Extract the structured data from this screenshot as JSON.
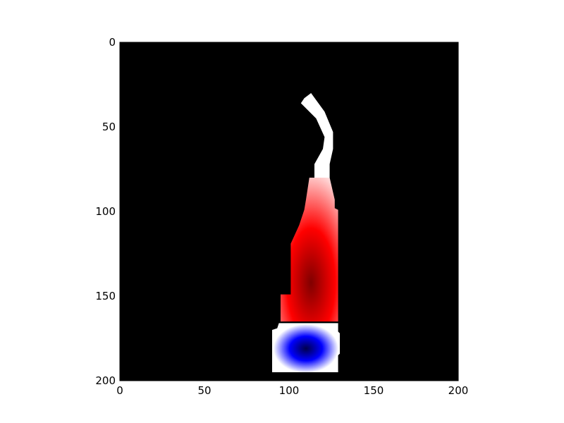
{
  "chart_data": {
    "type": "heatmap",
    "title": "",
    "xlabel": "",
    "ylabel": "",
    "xlim": [
      0,
      200
    ],
    "ylim": [
      200,
      0
    ],
    "x_ticks": [
      "0",
      "50",
      "100",
      "150",
      "200"
    ],
    "y_ticks": [
      "0",
      "50",
      "100",
      "150",
      "200"
    ],
    "x_tick_values": [
      0,
      50,
      100,
      150,
      200
    ],
    "y_tick_values": [
      0,
      50,
      100,
      150,
      200
    ],
    "background_color": "#000000",
    "colormap": "seismic",
    "colormap_colors": [
      "#00004c",
      "#0000ff",
      "#ffffff",
      "#ff0000",
      "#800000"
    ],
    "grid": false,
    "regions": [
      {
        "name": "white upper stem",
        "color": "#ffffff",
        "outline_x": [
          109,
          113,
          121,
          126,
          126,
          124,
          124,
          115,
          115,
          120,
          121,
          116,
          107
        ],
        "outline_y": [
          33,
          30,
          41,
          53,
          63,
          72,
          80,
          80,
          72,
          63,
          56,
          45,
          36
        ]
      },
      {
        "name": "red lower stem",
        "peak_color": "#800000",
        "peak_x": 113,
        "peak_y": 142,
        "outline_x": [
          124,
          127,
          127,
          129,
          129,
          95,
          95,
          101,
          101,
          106,
          109,
          110,
          112,
          115
        ],
        "outline_y": [
          80,
          93,
          98,
          99,
          165,
          165,
          149,
          149,
          119,
          108,
          99,
          93,
          80,
          80
        ]
      },
      {
        "name": "blue base",
        "peak_color": "#00004c",
        "peak_x": 110,
        "peak_y": 181,
        "outline_x": [
          94,
          129,
          129,
          130,
          130,
          129,
          129,
          90,
          90,
          93
        ],
        "outline_y": [
          166,
          166,
          171,
          172,
          184,
          185,
          195,
          195,
          170,
          169
        ]
      }
    ]
  }
}
